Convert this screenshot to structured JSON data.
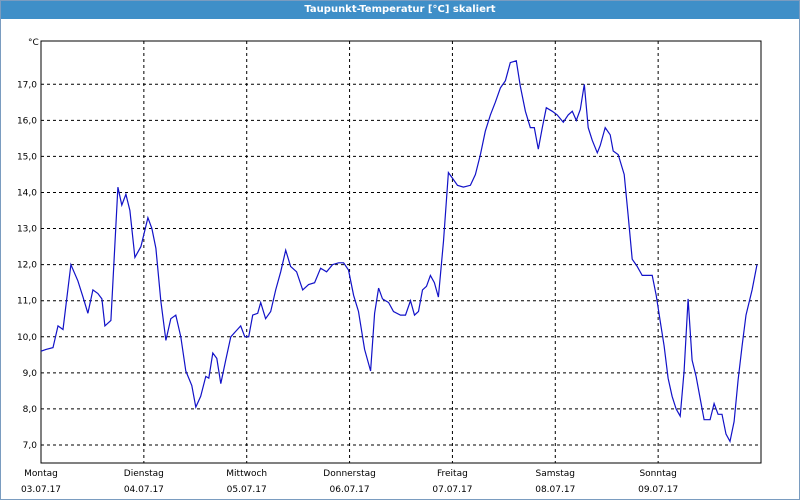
{
  "chart_data": {
    "type": "line",
    "title": "Taupunkt-Temperatur [°C] skaliert",
    "y_label": "°C",
    "color": "#1212c8",
    "grid": true,
    "xlim": [
      0,
      7
    ],
    "xticks": [
      {
        "value": 0,
        "label": "Montag"
      },
      {
        "value": 1,
        "label": "Dienstag"
      },
      {
        "value": 2,
        "label": "Mittwoch"
      },
      {
        "value": 3,
        "label": "Donnerstag"
      },
      {
        "value": 4,
        "label": "Freitag"
      },
      {
        "value": 5,
        "label": "Samstag"
      },
      {
        "value": 6,
        "label": "Sonntag"
      },
      {
        "value": 7,
        "label": ""
      }
    ],
    "xtick_dates": [
      "03.07.17",
      "04.07.17",
      "05.07.17",
      "06.07.17",
      "07.07.17",
      "08.07.17",
      "09.07.17",
      ""
    ],
    "ylim": [
      6.5,
      18.2
    ],
    "yticks": [
      {
        "value": 7,
        "label": "7,0"
      },
      {
        "value": 8,
        "label": "8,0"
      },
      {
        "value": 9,
        "label": "9,0"
      },
      {
        "value": 10,
        "label": "10,0"
      },
      {
        "value": 11,
        "label": "11,0"
      },
      {
        "value": 12,
        "label": "12,0"
      },
      {
        "value": 13,
        "label": "13,0"
      },
      {
        "value": 14,
        "label": "14,0"
      },
      {
        "value": 15,
        "label": "15,0"
      },
      {
        "value": 16,
        "label": "16,0"
      },
      {
        "value": 17,
        "label": "17,0"
      }
    ],
    "x": [
      0,
      0.049,
      0.117,
      0.165,
      0.214,
      0.291,
      0.359,
      0.408,
      0.456,
      0.505,
      0.553,
      0.592,
      0.621,
      0.68,
      0.748,
      0.786,
      0.825,
      0.864,
      0.913,
      0.971,
      1.039,
      1.078,
      1.117,
      1.165,
      1.214,
      1.262,
      1.311,
      1.359,
      1.408,
      1.466,
      1.505,
      1.553,
      1.602,
      1.631,
      1.67,
      1.709,
      1.748,
      1.796,
      1.845,
      1.893,
      1.942,
      1.981,
      2.019,
      2.058,
      2.107,
      2.136,
      2.184,
      2.233,
      2.282,
      2.33,
      2.379,
      2.427,
      2.485,
      2.544,
      2.602,
      2.66,
      2.718,
      2.777,
      2.835,
      2.893,
      2.942,
      2.99,
      3.039,
      3.087,
      3.146,
      3.204,
      3.243,
      3.282,
      3.32,
      3.379,
      3.427,
      3.495,
      3.544,
      3.592,
      3.631,
      3.67,
      3.709,
      3.748,
      3.786,
      3.825,
      3.864,
      3.913,
      3.961,
      4.0,
      4.049,
      4.107,
      4.175,
      4.223,
      4.272,
      4.32,
      4.369,
      4.417,
      4.466,
      4.515,
      4.563,
      4.621,
      4.66,
      4.709,
      4.757,
      4.796,
      4.835,
      4.874,
      4.913,
      4.971,
      5.019,
      5.078,
      5.126,
      5.165,
      5.204,
      5.243,
      5.282,
      5.32,
      5.359,
      5.408,
      5.437,
      5.485,
      5.534,
      5.563,
      5.612,
      5.67,
      5.709,
      5.748,
      5.796,
      5.845,
      5.903,
      5.942,
      5.981,
      6.019,
      6.058,
      6.097,
      6.136,
      6.175,
      6.214,
      6.252,
      6.291,
      6.33,
      6.369,
      6.408,
      6.447,
      6.505,
      6.544,
      6.583,
      6.621,
      6.66,
      6.699,
      6.738,
      6.777,
      6.816,
      6.854,
      6.913,
      6.961
    ],
    "values": [
      9.6,
      9.65,
      9.7,
      10.3,
      10.2,
      12.0,
      11.55,
      11.1,
      10.65,
      11.3,
      11.2,
      11.05,
      10.3,
      10.45,
      14.15,
      13.65,
      13.95,
      13.5,
      12.2,
      12.5,
      13.3,
      13.0,
      12.45,
      11.0,
      9.9,
      10.5,
      10.6,
      10.0,
      9.05,
      8.65,
      8.05,
      8.35,
      8.9,
      8.85,
      9.55,
      9.4,
      8.7,
      9.35,
      10.0,
      10.15,
      10.3,
      10.0,
      10.0,
      10.6,
      10.65,
      10.95,
      10.5,
      10.7,
      11.3,
      11.8,
      12.4,
      11.95,
      11.8,
      11.3,
      11.45,
      11.5,
      11.9,
      11.8,
      12.0,
      12.05,
      12.05,
      11.85,
      11.15,
      10.7,
      9.65,
      9.05,
      10.65,
      11.35,
      11.05,
      10.95,
      10.7,
      10.6,
      10.6,
      11.0,
      10.6,
      10.7,
      11.3,
      11.4,
      11.7,
      11.5,
      11.1,
      12.65,
      14.55,
      14.4,
      14.2,
      14.15,
      14.2,
      14.5,
      15.05,
      15.7,
      16.15,
      16.5,
      16.9,
      17.1,
      17.6,
      17.65,
      16.95,
      16.25,
      15.8,
      15.8,
      15.2,
      15.8,
      16.35,
      16.25,
      16.15,
      15.95,
      16.15,
      16.25,
      16.0,
      16.3,
      17.0,
      15.8,
      15.45,
      15.1,
      15.3,
      15.8,
      15.6,
      15.15,
      15.05,
      14.5,
      13.35,
      12.15,
      11.95,
      11.7,
      11.7,
      11.7,
      11.15,
      10.45,
      9.75,
      8.85,
      8.35,
      8.0,
      7.8,
      9.05,
      11.05,
      9.35,
      8.9,
      8.3,
      7.7,
      7.7,
      8.15,
      7.85,
      7.85,
      7.3,
      7.1,
      7.65,
      8.8,
      9.75,
      10.6,
      11.3,
      12.0
    ]
  }
}
